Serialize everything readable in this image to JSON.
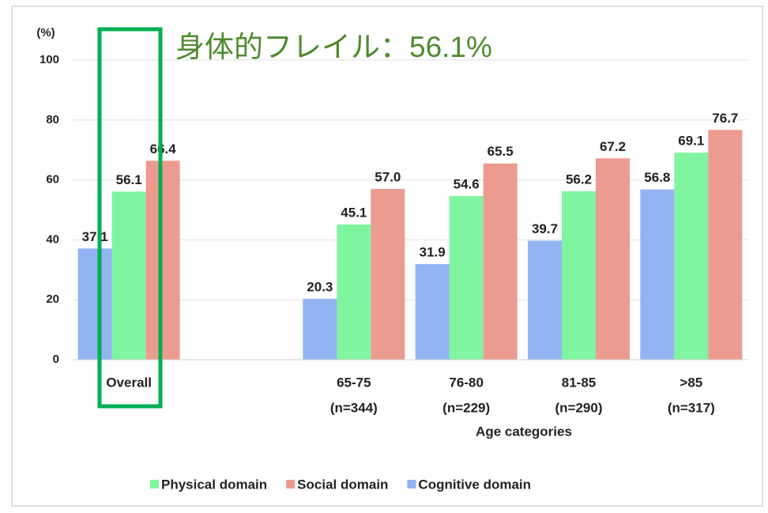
{
  "chart_data": {
    "type": "bar",
    "annotation": "身体的フレイル：56.1%",
    "y_unit": "(%)",
    "x_label": "Age categories",
    "categories": [
      "Overall",
      null,
      "65-75",
      "76-80",
      "81-85",
      ">85"
    ],
    "sample_sizes": [
      null,
      null,
      "(n=344)",
      "(n=229)",
      "(n=290)",
      "(n=317)"
    ],
    "series": [
      {
        "name": "Physical domain",
        "color": "#80f5a0",
        "values": [
          56.1,
          null,
          45.1,
          54.6,
          56.2,
          69.1
        ],
        "value_labels": [
          "56.1",
          null,
          "45.1",
          "54.6",
          "56.2",
          "69.1"
        ]
      },
      {
        "name": "Social domain",
        "color": "#ec9b91",
        "values": [
          66.4,
          null,
          57.0,
          65.5,
          67.2,
          76.7
        ],
        "value_labels": [
          "66.4",
          null,
          "57.0",
          "65.5",
          "67.2",
          "76.7"
        ]
      },
      {
        "name": "Cognitive domain",
        "color": "#92b4f4",
        "values": [
          37.1,
          null,
          20.3,
          31.9,
          39.7,
          56.8
        ],
        "value_labels": [
          "37.1",
          null,
          "20.3",
          "31.9",
          "39.7",
          "56.8"
        ]
      }
    ],
    "ylim": [
      0,
      100
    ],
    "yticks": [
      0,
      20,
      40,
      60,
      80,
      100
    ],
    "grid": true,
    "legend": "bottom"
  }
}
